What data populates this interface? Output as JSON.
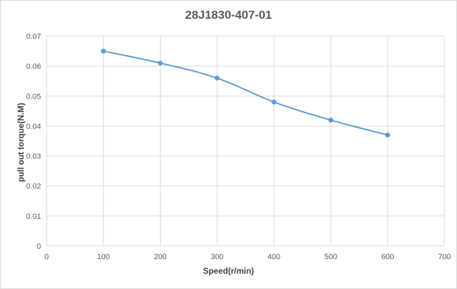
{
  "chart_data": {
    "type": "scatter",
    "title": "28J1830-407-01",
    "xlabel": "Speed(r/min)",
    "ylabel": "pull out torque(N.M)",
    "xlim": [
      0,
      700
    ],
    "ylim": [
      0,
      0.07
    ],
    "x_ticks": [
      "0",
      "100",
      "200",
      "300",
      "400",
      "500",
      "600",
      "700"
    ],
    "y_ticks": [
      "0",
      "0.01",
      "0.02",
      "0.03",
      "0.04",
      "0.05",
      "0.06",
      "0.07"
    ],
    "grid": true,
    "smooth_line": true,
    "markers": true,
    "series": [
      {
        "x": [
          100,
          200,
          300,
          400,
          500,
          600
        ],
        "y": [
          0.065,
          0.061,
          0.056,
          0.048,
          0.042,
          0.037
        ],
        "color": "#5b9bd5"
      }
    ]
  }
}
